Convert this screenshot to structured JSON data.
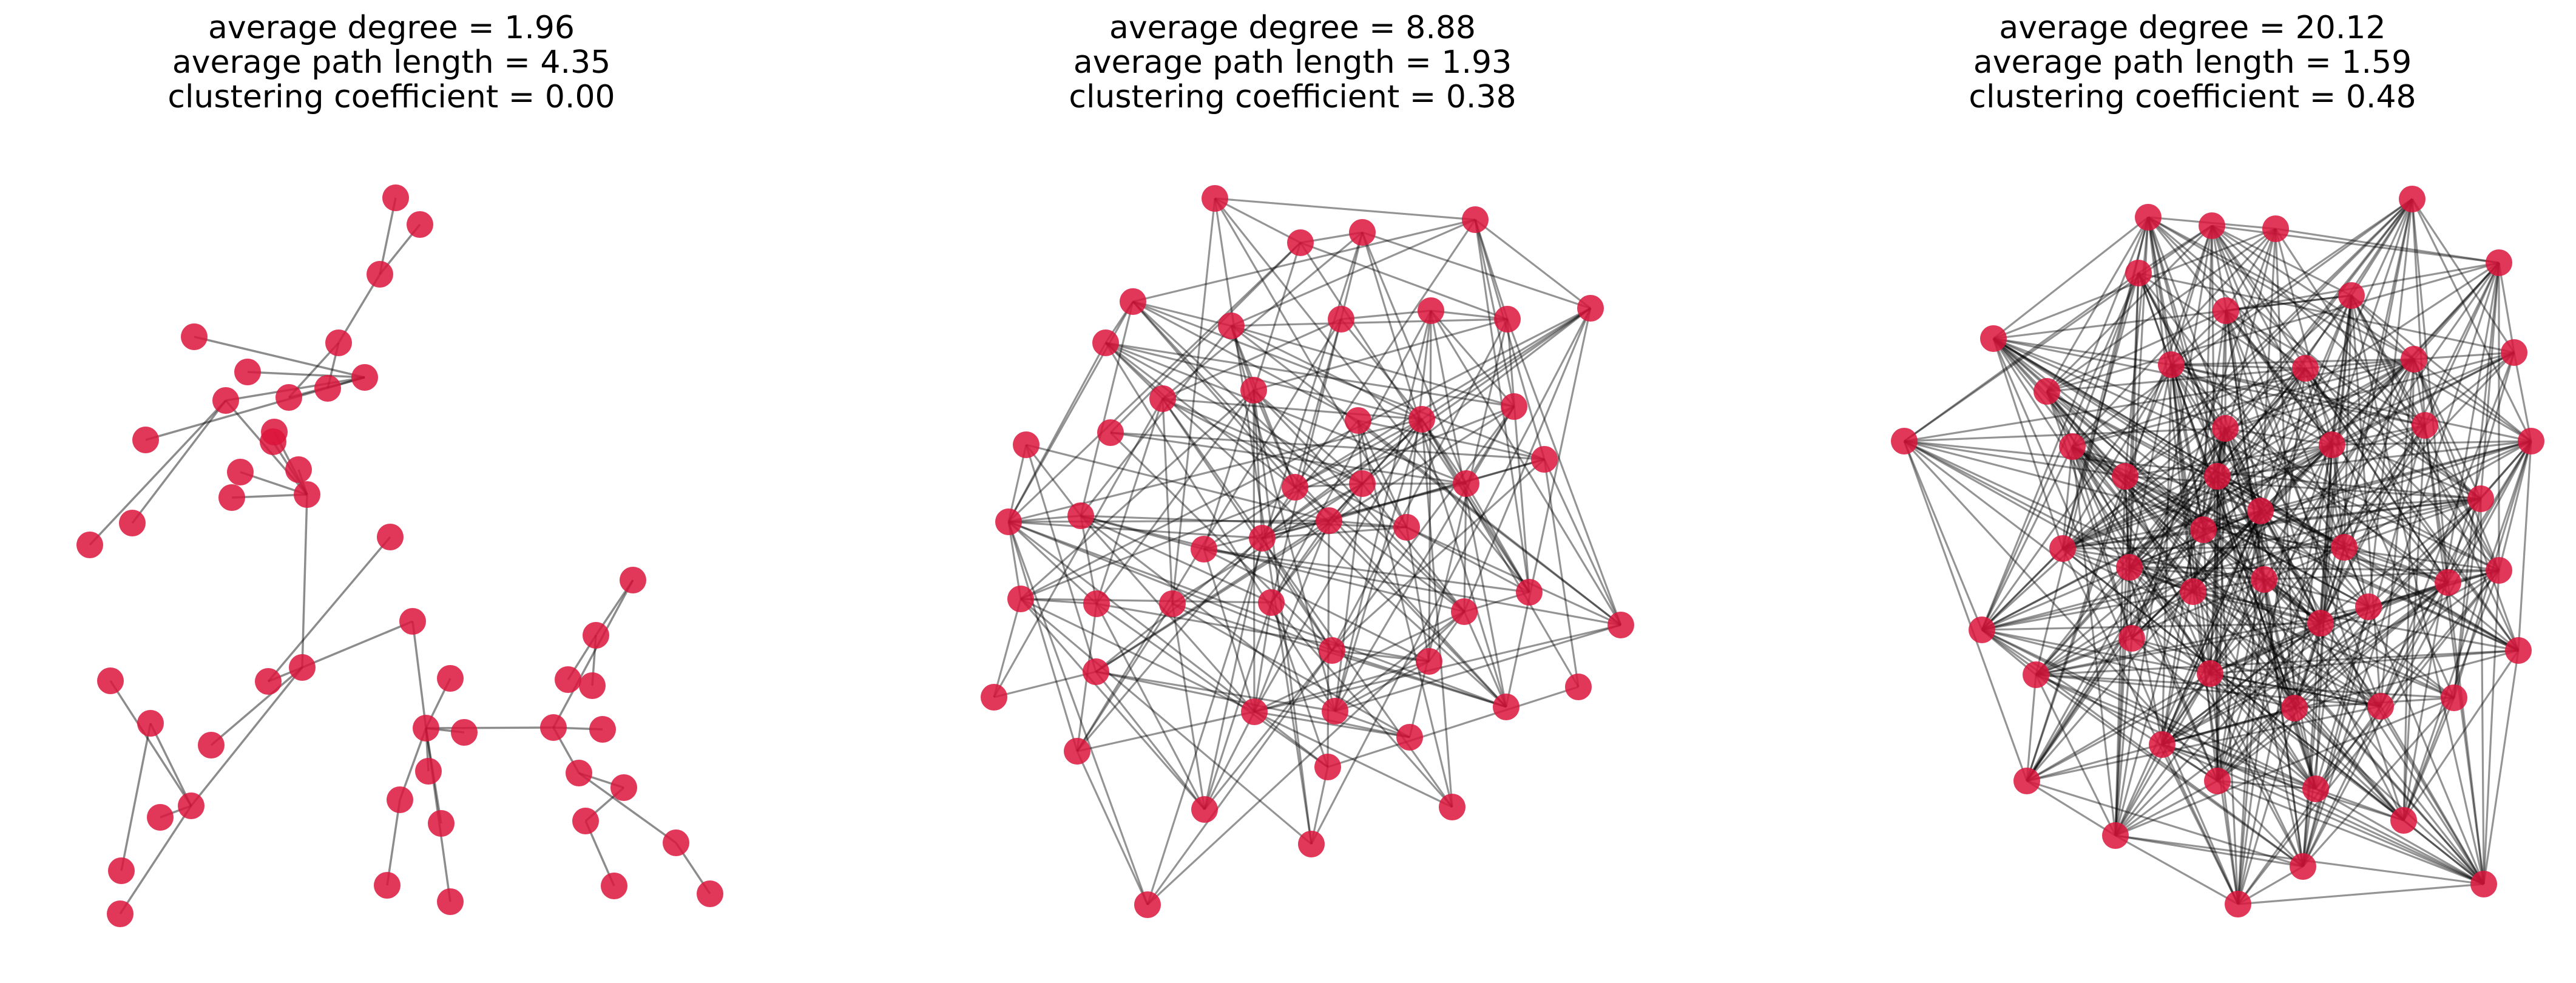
{
  "node_color": "#dc143c",
  "edge_color": "#000000",
  "panels": [
    {
      "title_lines": [
        "average degree = 1.96",
        "average path length = 4.35",
        "clustering coefficient = 0.00"
      ],
      "average_degree": 1.96,
      "average_path_length": 4.35,
      "clustering_coefficient": 0.0,
      "node_count": 50,
      "edge_count": 49
    },
    {
      "title_lines": [
        "average degree = 8.88",
        "average path length = 1.93",
        "clustering coefficient = 0.38"
      ],
      "average_degree": 8.88,
      "average_path_length": 1.93,
      "clustering_coefficient": 0.38,
      "node_count": 50,
      "edge_count": 222
    },
    {
      "title_lines": [
        "average degree = 20.12",
        "average path length = 1.59",
        "clustering coefficient = 0.48"
      ],
      "average_degree": 20.12,
      "average_path_length": 1.59,
      "clustering_coefficient": 0.48,
      "node_count": 50,
      "edge_count": 503
    }
  ]
}
